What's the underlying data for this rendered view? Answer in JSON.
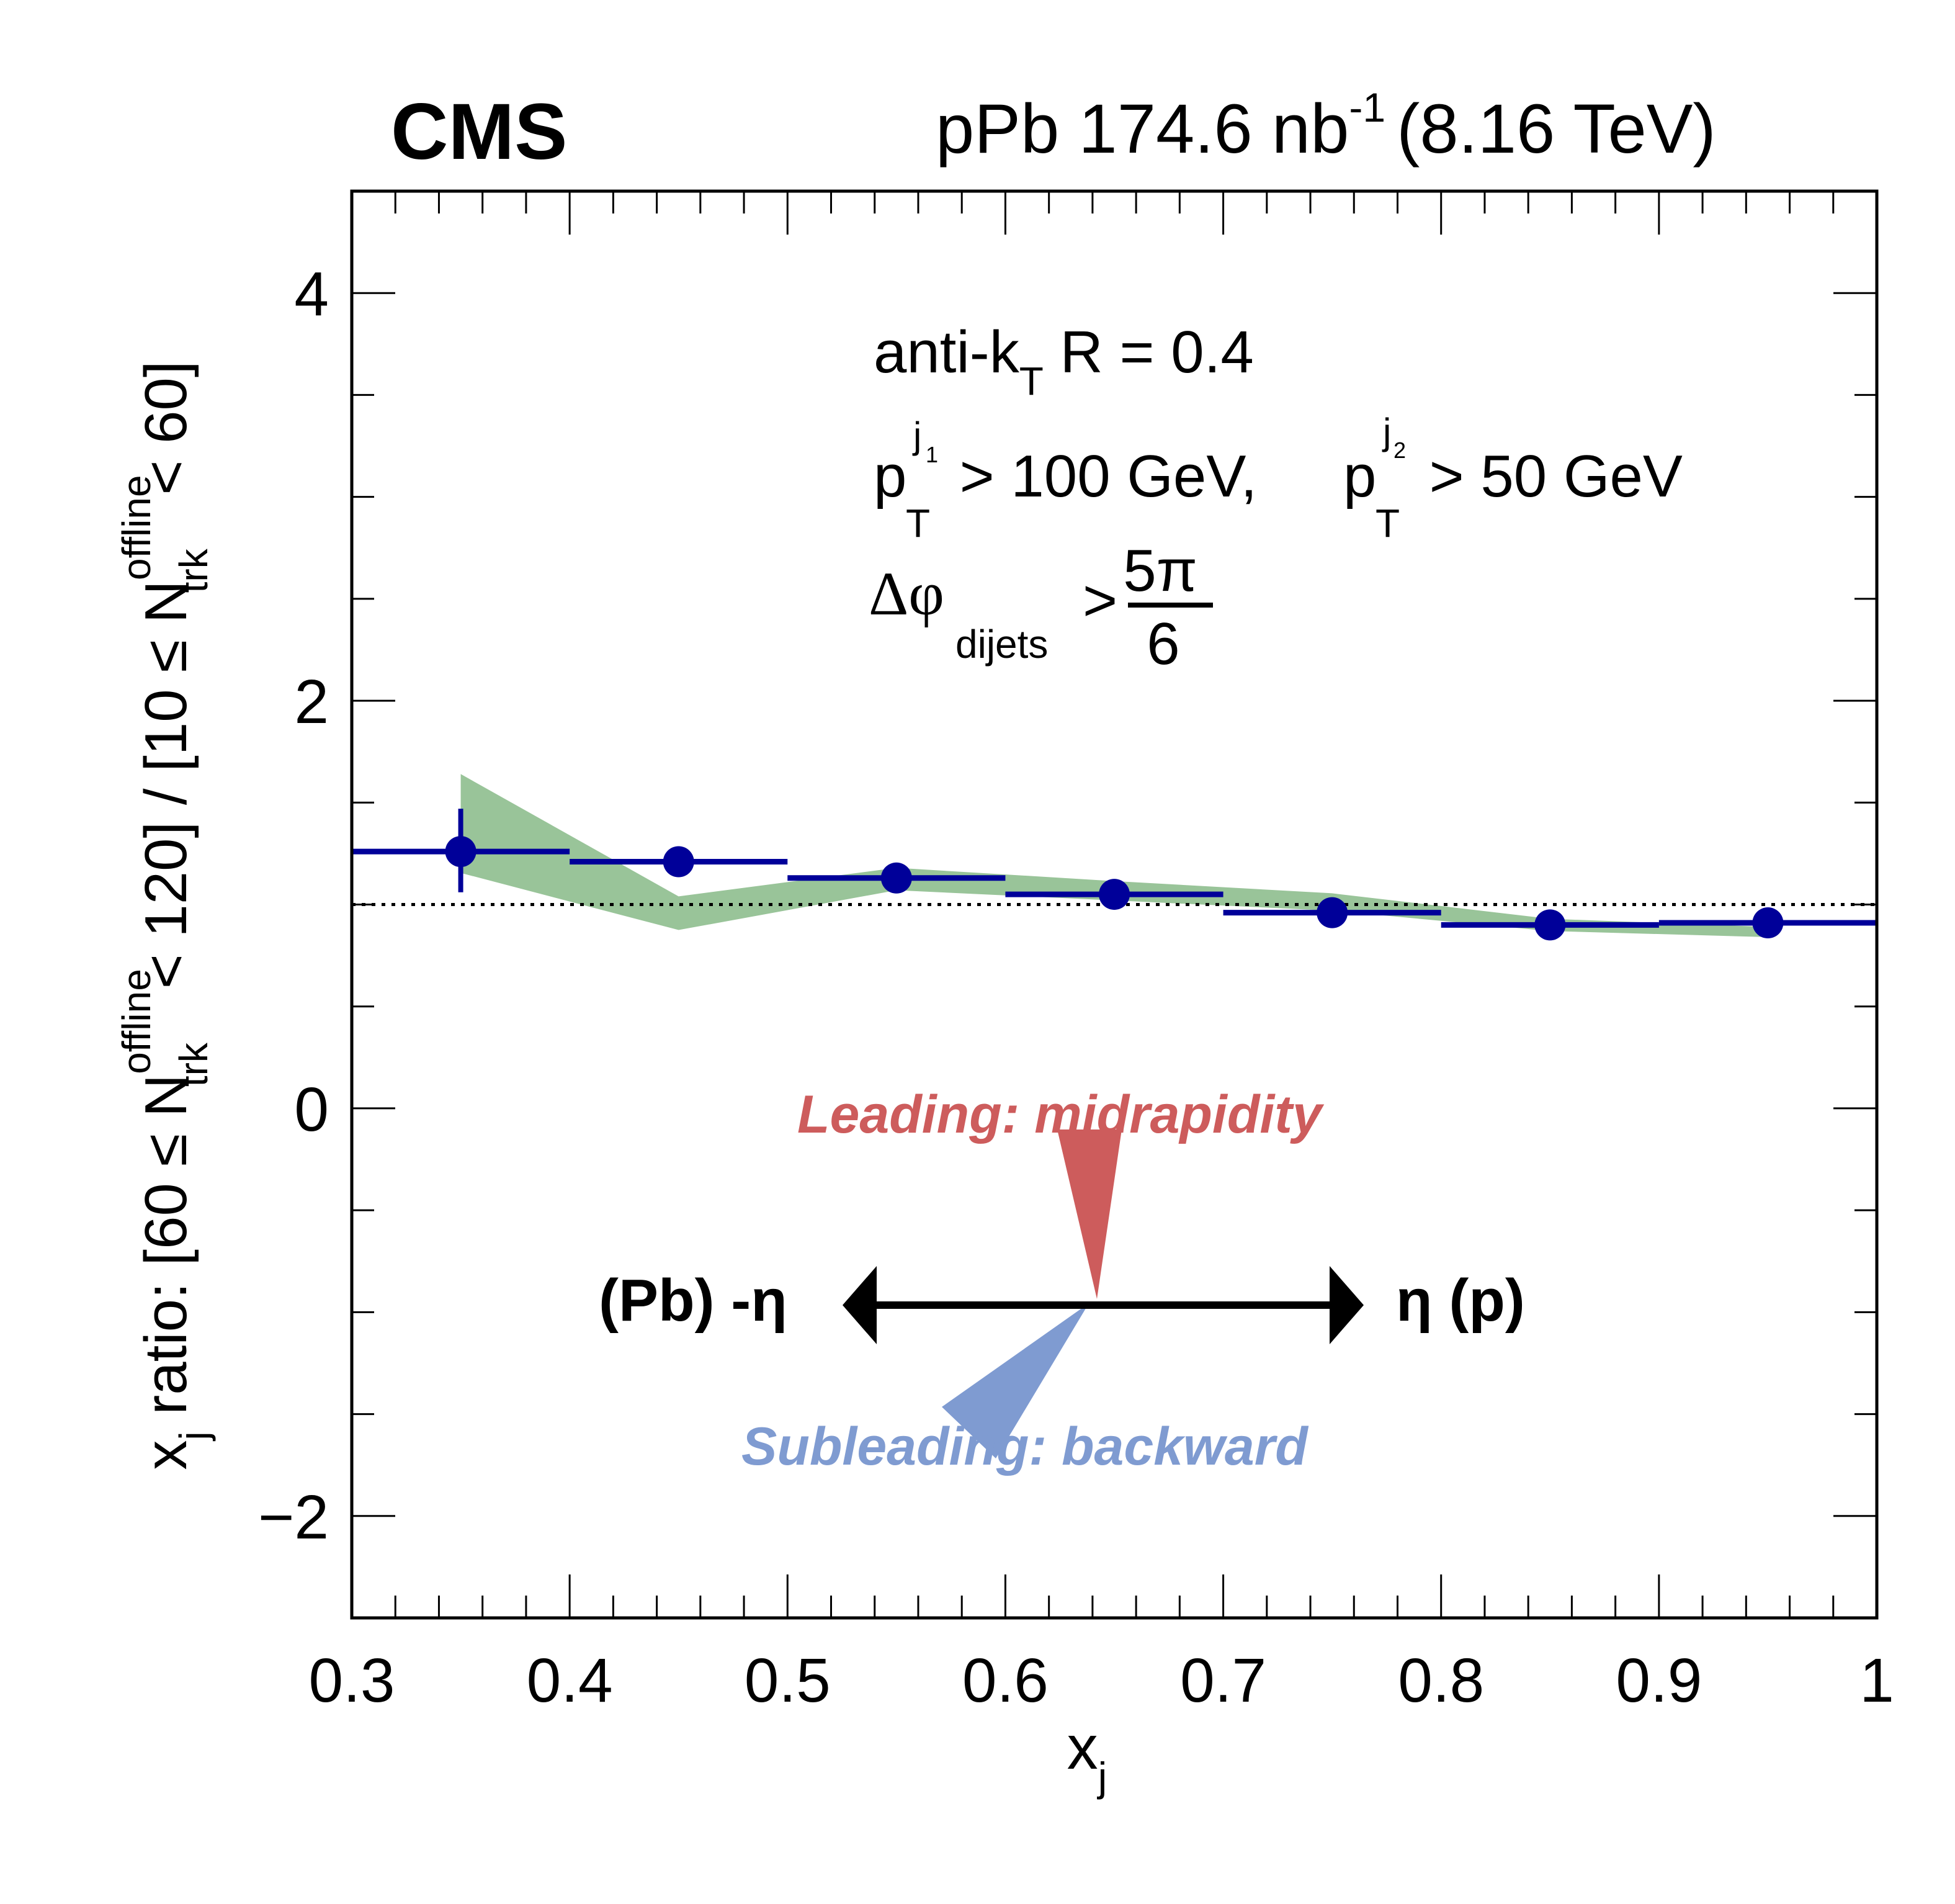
{
  "header": {
    "experiment": "CMS",
    "dataset": "pPb 174.6 nb",
    "lumi_exponent": "-1",
    "energy": "(8.16 TeV)"
  },
  "annotations": {
    "line1_main": "anti-k",
    "line1_sub": "T",
    "line1_rest": " R = 0.4",
    "line2_p1": "p",
    "line2_p1_sup": "j",
    "line2_p1_supsub": "1",
    "line2_p1_sub": "T",
    "line2_mid": " > 100 GeV, ",
    "line2_p2": "p",
    "line2_p2_sup": "j",
    "line2_p2_supsub": "2",
    "line2_p2_sub": "T",
    "line2_end": " > 50 GeV",
    "line3_delta": "Δφ",
    "line3_sub": "dijets",
    "line3_gt": ">",
    "line3_num": "5π",
    "line3_den": "6"
  },
  "diagram": {
    "leading_label": "Leading: midrapidity",
    "subleading_label": "Subleading: backward",
    "left_label": "(Pb) -η",
    "right_label": "η (p)",
    "leading_color": "#cd5c5c",
    "subleading_color": "#7f9bd1"
  },
  "chart_data": {
    "type": "scatter",
    "title": "",
    "xlabel": "x_j",
    "xlabel_main": "x",
    "xlabel_sub": "j",
    "ylabel": "x_j ratio: [60 ≤ N_trk^offline < 120] / [10 ≤ N_trk^offline < 60]",
    "ylabel_parts": {
      "p1": "x",
      "p1_sub": "j",
      "p2": " ratio: [60 ≤ N",
      "p2_sup": "offline",
      "p2_sub": "trk",
      "p3": " < 120] / [10 ≤ N",
      "p3_sup": "offline",
      "p3_sub": "trk",
      "p4": " < 60]"
    },
    "xlim": [
      0.3,
      1.0
    ],
    "ylim": [
      -2.5,
      4.5
    ],
    "x_ticks": [
      "0.3",
      "0.4",
      "0.5",
      "0.6",
      "0.7",
      "0.8",
      "0.9",
      "1"
    ],
    "x_tick_values": [
      0.3,
      0.4,
      0.5,
      0.6,
      0.7,
      0.8,
      0.9,
      1.0
    ],
    "y_ticks": [
      "−2",
      "0",
      "2",
      "4"
    ],
    "y_tick_values": [
      -2,
      0,
      2,
      4
    ],
    "reference_line": 1.0,
    "series": [
      {
        "name": "data",
        "color": "#000099",
        "x": [
          0.35,
          0.45,
          0.55,
          0.65,
          0.75,
          0.85,
          0.95
        ],
        "x_bin_low": [
          0.3,
          0.4,
          0.5,
          0.6,
          0.7,
          0.8,
          0.9
        ],
        "x_bin_high": [
          0.4,
          0.5,
          0.6,
          0.7,
          0.8,
          0.9,
          1.0
        ],
        "y": [
          1.26,
          1.21,
          1.13,
          1.05,
          0.96,
          0.9,
          0.91
        ],
        "y_err_low": [
          1.06,
          1.21,
          1.13,
          1.05,
          0.96,
          0.9,
          0.91
        ],
        "y_err_high": [
          1.47,
          1.21,
          1.13,
          1.05,
          0.96,
          0.9,
          0.91
        ]
      },
      {
        "name": "systematic band",
        "color": "#99c499",
        "x": [
          0.35,
          0.45,
          0.55,
          0.65,
          0.75,
          0.85,
          0.95
        ],
        "y_high": [
          1.64,
          1.04,
          1.18,
          1.115,
          1.055,
          0.93,
          0.89
        ],
        "y_low": [
          1.155,
          0.875,
          1.07,
          1.02,
          0.97,
          0.87,
          0.84
        ]
      }
    ],
    "grid": false,
    "legend": "none"
  }
}
